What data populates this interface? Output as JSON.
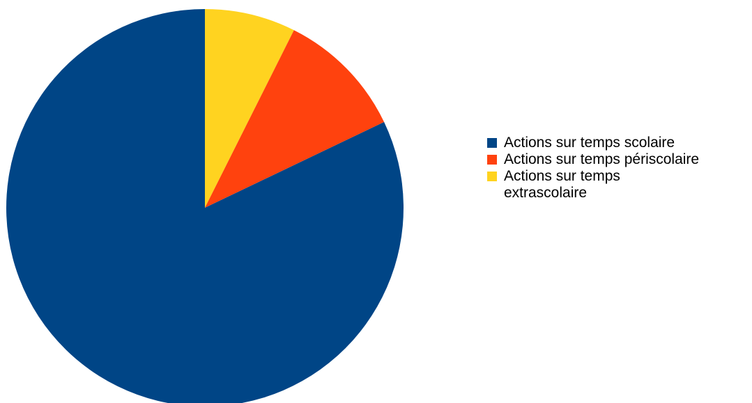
{
  "chart_data": {
    "type": "pie",
    "title": "",
    "start_angle_deg": 0,
    "direction": "clockwise",
    "slices": [
      {
        "label": "Actions sur temps extrascolaire",
        "value": 7.4,
        "color": "#FFD320"
      },
      {
        "label": "Actions sur temps périscolaire",
        "value": 10.5,
        "color": "#FF420E"
      },
      {
        "label": "Actions sur temps scolaire",
        "value": 82.1,
        "color": "#004586"
      }
    ],
    "legend": {
      "position": "right",
      "entries": [
        {
          "label": "Actions sur temps scolaire",
          "color": "#004586"
        },
        {
          "label": "Actions sur temps périscolaire",
          "color": "#FF420E"
        },
        {
          "label": "Actions sur temps extrascolaire",
          "color": "#FFD320"
        }
      ]
    }
  }
}
